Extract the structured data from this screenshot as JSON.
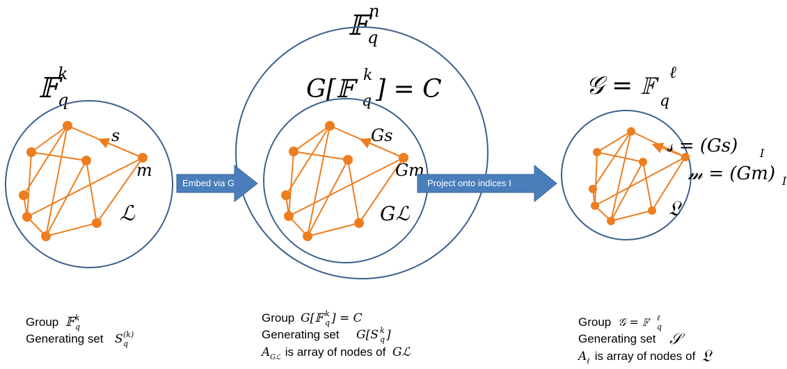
{
  "diagram": {
    "left": {
      "space": "𝔽",
      "space_sup": "k",
      "space_sub": "q",
      "node_label_s": "s",
      "node_label_m": "m",
      "set_label": "ℒ",
      "caption_group": "Group",
      "caption_group_math": "𝔽",
      "caption_group_sup": "k",
      "caption_group_sub": "q",
      "caption_gen": "Generating set",
      "caption_gen_math": "S",
      "caption_gen_sup": "(k)",
      "caption_gen_sub": "q"
    },
    "middle": {
      "outer_space": "𝔽",
      "outer_sup": "n",
      "outer_sub": "q",
      "inner_title_pre": "G[𝔽",
      "inner_title_sup": "k",
      "inner_title_sub": "q",
      "inner_title_post": "] = C",
      "node_label_s": "Gs",
      "node_label_m": "Gm",
      "set_label": "Gℒ",
      "caption_group": "Group",
      "caption_group_math_pre": "G[𝔽",
      "caption_group_math_sup": "k",
      "caption_group_math_sub": "q",
      "caption_group_math_post": "] = C",
      "caption_gen": "Generating set",
      "caption_gen_math_pre": "G[S",
      "caption_gen_math_sup": "k",
      "caption_gen_math_sub": "q",
      "caption_gen_math_post": "]",
      "caption_array_math": "A",
      "caption_array_sub": "Gℒ",
      "caption_array_text": " is array of nodes of ",
      "caption_array_target": "Gℒ"
    },
    "right": {
      "title_pre": "𝒢 = 𝔽",
      "title_sup": "ℓ",
      "title_sub": "q",
      "node_label_s_pre": "𝓈 = (Gs)",
      "node_label_s_sub": "I",
      "node_label_m_pre": "𝓂 = (Gm)",
      "node_label_m_sub": "I",
      "set_label": "𝔏",
      "caption_group": "Group",
      "caption_group_math_pre": "𝒢 = 𝔽",
      "caption_group_math_sup": "ℓ",
      "caption_group_math_sub": "q",
      "caption_gen": "Generating set",
      "caption_gen_math": "𝒮",
      "caption_array_math": "A",
      "caption_array_sub": "ℓ",
      "caption_array_text": " is array of nodes of ",
      "caption_array_target": "𝔏"
    },
    "arrows": {
      "embed_label": "Embed via G",
      "project_label": "Project onto indices I"
    },
    "colors": {
      "circle_stroke": "#3b5f8a",
      "node_fill": "#ed7d1f",
      "edge_stroke": "#ed7d1f",
      "arrow_fill": "#4a7ebb",
      "arrow_stroke": "#3a6494"
    }
  }
}
